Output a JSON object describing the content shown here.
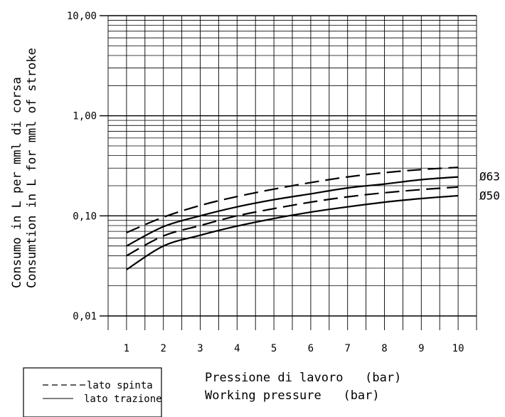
{
  "chart_data": {
    "type": "line",
    "x_scale": "linear",
    "y_scale": "log",
    "xlim": [
      0.5,
      10.5
    ],
    "ylim": [
      0.01,
      10
    ],
    "x_ticks": [
      1,
      2,
      3,
      4,
      5,
      6,
      7,
      8,
      9,
      10
    ],
    "x_tick_labels": [
      "1",
      "2",
      "3",
      "4",
      "5",
      "6",
      "7",
      "8",
      "9",
      "10"
    ],
    "y_ticks": [
      0.01,
      0.1,
      1,
      10
    ],
    "y_tick_labels": [
      "0,01",
      "0,10",
      "1,00",
      "10,00"
    ],
    "xlabel_lines": [
      "Pressione di lavoro   (bar)",
      "Working pressure   (bar)"
    ],
    "ylabel_lines": [
      "Consumo in L per mml di corsa",
      "Consumtion in L for mml of stroke"
    ],
    "grid": true,
    "legend": {
      "position": "bottom-left",
      "entries": [
        {
          "label": "lato spinta",
          "style": "dashed"
        },
        {
          "label": "lato trazione",
          "style": "solid"
        }
      ]
    },
    "series_labels": [
      {
        "text": "Ø63",
        "near_y": 0.25
      },
      {
        "text": "Ø50",
        "near_y": 0.16
      }
    ],
    "series": [
      {
        "group": "Ø63",
        "style": "dashed",
        "x": [
          1,
          2,
          3,
          4,
          5,
          6,
          7,
          8,
          9,
          10
        ],
        "y": [
          0.068,
          0.097,
          0.127,
          0.156,
          0.185,
          0.215,
          0.245,
          0.27,
          0.29,
          0.305
        ]
      },
      {
        "group": "Ø63",
        "style": "solid",
        "x": [
          1,
          2,
          3,
          4,
          5,
          6,
          7,
          8,
          9,
          10
        ],
        "y": [
          0.05,
          0.078,
          0.1,
          0.123,
          0.145,
          0.166,
          0.19,
          0.208,
          0.23,
          0.245
        ]
      },
      {
        "group": "Ø50",
        "style": "dashed",
        "x": [
          1,
          2,
          3,
          4,
          5,
          6,
          7,
          8,
          9,
          10
        ],
        "y": [
          0.04,
          0.063,
          0.08,
          0.1,
          0.118,
          0.137,
          0.155,
          0.17,
          0.183,
          0.194
        ]
      },
      {
        "group": "Ø50",
        "style": "solid",
        "x": [
          1,
          2,
          3,
          4,
          5,
          6,
          7,
          8,
          9,
          10
        ],
        "y": [
          0.029,
          0.05,
          0.064,
          0.079,
          0.094,
          0.109,
          0.123,
          0.137,
          0.149,
          0.159
        ]
      }
    ]
  }
}
